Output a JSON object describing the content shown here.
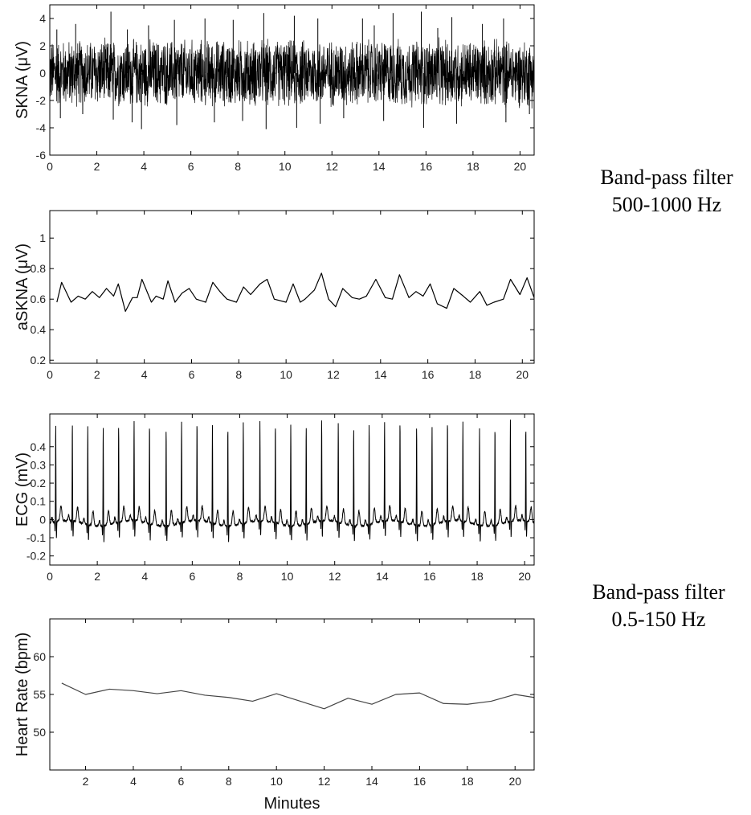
{
  "annotations": {
    "upper": [
      "Band-pass filter",
      "500-1000 Hz"
    ],
    "lower": [
      "Band-pass filter",
      "0.5-150 Hz"
    ]
  },
  "colors": {
    "line": "#000000",
    "hr_line": "#444444",
    "axis": "#000000"
  },
  "chart_data": [
    {
      "type": "line",
      "ylabel": "SKNA (μV)",
      "xlabel": "",
      "xlim": [
        0,
        20.6
      ],
      "ylim": [
        -6,
        5
      ],
      "xticks": [
        "0",
        "2",
        "4",
        "6",
        "8",
        "10",
        "12",
        "14",
        "16",
        "18",
        "20"
      ],
      "yticks": [
        "-6",
        "-4",
        "-2",
        "0",
        "2",
        "4"
      ],
      "grid": false,
      "style": "dense-noise",
      "envelope": [
        -2.7,
        2.7
      ],
      "spikes": [
        {
          "x": 0.3,
          "y": 3.2
        },
        {
          "x": 0.45,
          "y": -3.3
        },
        {
          "x": 1.1,
          "y": 3.6
        },
        {
          "x": 1.4,
          "y": -3.0
        },
        {
          "x": 2.6,
          "y": 4.5
        },
        {
          "x": 2.7,
          "y": -3.4
        },
        {
          "x": 3.3,
          "y": 3.2
        },
        {
          "x": 3.5,
          "y": -3.6
        },
        {
          "x": 3.9,
          "y": -4.1
        },
        {
          "x": 4.2,
          "y": 3.5
        },
        {
          "x": 5.3,
          "y": 3.9
        },
        {
          "x": 5.4,
          "y": -3.8
        },
        {
          "x": 6.6,
          "y": 4.0
        },
        {
          "x": 7.0,
          "y": -3.6
        },
        {
          "x": 7.8,
          "y": 3.9
        },
        {
          "x": 8.2,
          "y": -3.5
        },
        {
          "x": 9.1,
          "y": 4.4
        },
        {
          "x": 9.2,
          "y": -4.1
        },
        {
          "x": 10.4,
          "y": 4.2
        },
        {
          "x": 10.5,
          "y": -4.0
        },
        {
          "x": 11.4,
          "y": 4.0
        },
        {
          "x": 11.5,
          "y": -3.7
        },
        {
          "x": 12.5,
          "y": -3.3
        },
        {
          "x": 13.3,
          "y": 4.0
        },
        {
          "x": 13.8,
          "y": 3.5
        },
        {
          "x": 14.2,
          "y": -3.5
        },
        {
          "x": 14.6,
          "y": 4.4
        },
        {
          "x": 15.8,
          "y": 4.5
        },
        {
          "x": 15.9,
          "y": -4.0
        },
        {
          "x": 16.5,
          "y": 3.3
        },
        {
          "x": 17.1,
          "y": 4.1
        },
        {
          "x": 17.3,
          "y": -3.7
        },
        {
          "x": 18.4,
          "y": 3.6
        },
        {
          "x": 19.3,
          "y": 4.0
        },
        {
          "x": 19.4,
          "y": -3.6
        },
        {
          "x": 20.4,
          "y": -3.0
        }
      ]
    },
    {
      "type": "line",
      "ylabel": "aSKNA (μV)",
      "xlabel": "",
      "xlim": [
        0,
        20.5
      ],
      "ylim": [
        0.18,
        1.18
      ],
      "xticks": [
        "0",
        "2",
        "4",
        "6",
        "8",
        "10",
        "12",
        "14",
        "16",
        "18",
        "20"
      ],
      "yticks": [
        "0.2",
        "0.4",
        "0.6",
        "0.8",
        "1"
      ],
      "grid": false,
      "x": [
        0.3,
        0.5,
        0.9,
        1.2,
        1.5,
        1.8,
        2.1,
        2.4,
        2.7,
        2.9,
        3.2,
        3.5,
        3.7,
        3.9,
        4.3,
        4.5,
        4.8,
        5.0,
        5.3,
        5.6,
        5.9,
        6.2,
        6.6,
        6.9,
        7.2,
        7.5,
        7.9,
        8.2,
        8.5,
        8.9,
        9.2,
        9.5,
        10.0,
        10.3,
        10.6,
        10.8,
        11.2,
        11.5,
        11.8,
        12.1,
        12.4,
        12.8,
        13.1,
        13.4,
        13.8,
        14.2,
        14.5,
        14.8,
        15.2,
        15.5,
        15.8,
        16.1,
        16.4,
        16.8,
        17.1,
        17.5,
        17.8,
        18.2,
        18.5,
        18.8,
        19.2,
        19.5,
        19.9,
        20.2,
        20.5
      ],
      "values": [
        0.58,
        0.71,
        0.58,
        0.62,
        0.6,
        0.65,
        0.61,
        0.67,
        0.62,
        0.7,
        0.52,
        0.61,
        0.61,
        0.73,
        0.58,
        0.62,
        0.6,
        0.72,
        0.58,
        0.64,
        0.67,
        0.6,
        0.58,
        0.71,
        0.65,
        0.6,
        0.58,
        0.68,
        0.63,
        0.7,
        0.73,
        0.6,
        0.58,
        0.7,
        0.58,
        0.6,
        0.66,
        0.77,
        0.6,
        0.55,
        0.67,
        0.61,
        0.6,
        0.62,
        0.73,
        0.61,
        0.6,
        0.76,
        0.61,
        0.65,
        0.62,
        0.7,
        0.57,
        0.54,
        0.67,
        0.62,
        0.58,
        0.65,
        0.56,
        0.58,
        0.6,
        0.73,
        0.63,
        0.74,
        0.61
      ]
    },
    {
      "type": "line",
      "ylabel": "ECG (mV)",
      "xlabel": "",
      "xlim": [
        0,
        20.4
      ],
      "ylim": [
        -0.25,
        0.58
      ],
      "xticks": [
        "0",
        "2",
        "4",
        "6",
        "8",
        "10",
        "12",
        "14",
        "16",
        "18",
        "20"
      ],
      "yticks": [
        "-0.2",
        "-0.1",
        "0",
        "0.1",
        "0.2",
        "0.3",
        "0.4"
      ],
      "grid": false,
      "style": "ecg",
      "beats_x": [
        0.25,
        0.95,
        1.6,
        2.25,
        2.9,
        3.55,
        4.2,
        4.9,
        5.55,
        6.2,
        6.85,
        7.5,
        8.15,
        8.85,
        9.5,
        10.15,
        10.8,
        11.45,
        12.15,
        12.8,
        13.45,
        14.1,
        14.75,
        15.45,
        16.1,
        16.75,
        17.4,
        18.1,
        18.75,
        19.4,
        20.05
      ],
      "beats_r": [
        0.54,
        0.55,
        0.55,
        0.54,
        0.53,
        0.55,
        0.56,
        0.54,
        0.56,
        0.55,
        0.54,
        0.55,
        0.56,
        0.54,
        0.55,
        0.56,
        0.54,
        0.56,
        0.55,
        0.54,
        0.56,
        0.55,
        0.56,
        0.55,
        0.54,
        0.56,
        0.55,
        0.54,
        0.55,
        0.56,
        0.52
      ],
      "baseline": -0.02
    },
    {
      "type": "line",
      "ylabel": "Heart Rate (bpm)",
      "xlabel": "Minutes",
      "xlim": [
        0.5,
        20.8
      ],
      "ylim": [
        45,
        65
      ],
      "xticks": [
        "2",
        "4",
        "6",
        "8",
        "10",
        "12",
        "14",
        "16",
        "18",
        "20"
      ],
      "yticks": [
        "50",
        "55",
        "60"
      ],
      "grid": false,
      "x": [
        1,
        2,
        3,
        4,
        5,
        6,
        7,
        8,
        9,
        10,
        11,
        12,
        13,
        14,
        15,
        16,
        17,
        18,
        19,
        20,
        20.8
      ],
      "values": [
        56.5,
        55.0,
        55.7,
        55.5,
        55.1,
        55.5,
        54.9,
        54.6,
        54.1,
        55.1,
        54.1,
        53.1,
        54.5,
        53.7,
        55.0,
        55.2,
        53.8,
        53.7,
        54.1,
        55.0,
        54.6
      ]
    }
  ]
}
